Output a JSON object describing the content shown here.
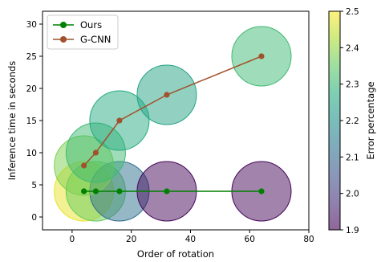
{
  "chart_data": {
    "type": "scatter",
    "xlabel": "Order of rotation",
    "ylabel": "Inference time in seconds",
    "xlim": [
      -10,
      80
    ],
    "ylim": [
      -2,
      32
    ],
    "xticks": [
      0,
      20,
      40,
      60,
      80
    ],
    "yticks": [
      0,
      5,
      10,
      15,
      20,
      25,
      30
    ],
    "grid": false,
    "legend": {
      "placement": "top-left"
    },
    "series": [
      {
        "name": "Ours",
        "color": "#008000",
        "x": [
          4,
          8,
          16,
          32,
          64
        ],
        "y": [
          4,
          4,
          4,
          4,
          4
        ],
        "bubbles": [
          {
            "x": 4,
            "y": 4,
            "error": 2.48
          },
          {
            "x": 8,
            "y": 4,
            "error": 2.36
          },
          {
            "x": 16,
            "y": 4,
            "error": 2.12
          },
          {
            "x": 32,
            "y": 4,
            "error": 1.91
          },
          {
            "x": 64,
            "y": 4,
            "error": 1.91
          }
        ]
      },
      {
        "name": "G-CNN",
        "color": "#a0522d",
        "x": [
          4,
          8,
          16,
          32,
          64
        ],
        "y": [
          8,
          10,
          15,
          19,
          25
        ],
        "bubbles": [
          {
            "x": 4,
            "y": 8,
            "error": 2.38
          },
          {
            "x": 8,
            "y": 10,
            "error": 2.31
          },
          {
            "x": 16,
            "y": 15,
            "error": 2.27
          },
          {
            "x": 32,
            "y": 19,
            "error": 2.25
          },
          {
            "x": 64,
            "y": 25,
            "error": 2.31
          }
        ]
      }
    ],
    "colorbar": {
      "label": "Error percentage",
      "colormap": "viridis",
      "range": [
        1.9,
        2.5
      ],
      "ticks": [
        "1.9",
        "2.0",
        "2.1",
        "2.2",
        "2.3",
        "2.4",
        "2.5"
      ]
    }
  }
}
